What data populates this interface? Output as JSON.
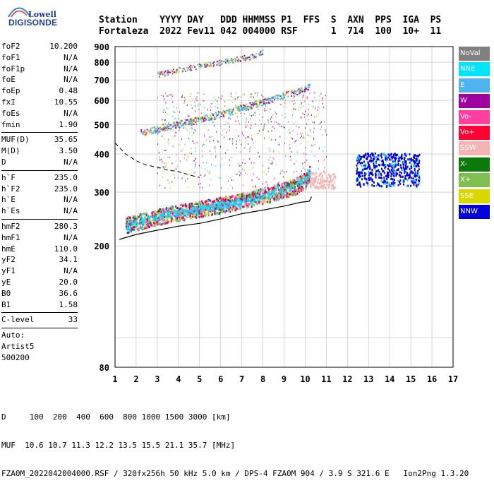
{
  "logo": {
    "line1": "Lowell",
    "line2": "DIGISONDE"
  },
  "header": {
    "labels": [
      "Station",
      "YYYY DAY",
      "DDD HHMMSS",
      "P1",
      "FFS",
      "S",
      "AXN",
      "PPS",
      "IGA",
      "PS"
    ],
    "line1": "Station    YYYY DAY   DDD HHMMSS P1  FFS  S  AXN  PPS  IGA  PS",
    "line2": "Fortaleza  2022 Fev11 042 004000 RSF      1  714  100  10+  11"
  },
  "params": [
    {
      "name": "foF2",
      "value": "10.200"
    },
    {
      "name": "foF1",
      "value": "N/A"
    },
    {
      "name": "foF1p",
      "value": "N/A"
    },
    {
      "name": "foE",
      "value": "N/A"
    },
    {
      "name": "foEp",
      "value": "0.48"
    },
    {
      "name": "fxI",
      "value": "10.55"
    },
    {
      "name": "foEs",
      "value": "N/A"
    },
    {
      "name": "fmin",
      "value": "1.90"
    },
    {
      "sep": true
    },
    {
      "name": "MUF(D)",
      "value": "35.65"
    },
    {
      "name": "M(D)",
      "value": "3.50"
    },
    {
      "name": "D",
      "value": "N/A"
    },
    {
      "sep": true
    },
    {
      "name": "h`F",
      "value": "235.0"
    },
    {
      "name": "h`F2",
      "value": "235.0"
    },
    {
      "name": "h`E",
      "value": "N/A"
    },
    {
      "name": "h`Es",
      "value": "N/A"
    },
    {
      "sep": true
    },
    {
      "name": "hmF2",
      "value": "280.3"
    },
    {
      "name": "hmF1",
      "value": "N/A"
    },
    {
      "name": "hmE",
      "value": "110.0"
    },
    {
      "name": "yF2",
      "value": "34.1"
    },
    {
      "name": "yF1",
      "value": "N/A"
    },
    {
      "name": "yE",
      "value": "20.0"
    },
    {
      "name": "B0",
      "value": "36.6"
    },
    {
      "name": "B1",
      "value": "1.58"
    },
    {
      "sep": true
    },
    {
      "name": "C-level",
      "value": "33"
    },
    {
      "sep": true
    },
    {
      "text": "Auto:"
    },
    {
      "text": "Artist5"
    },
    {
      "text": "500200"
    }
  ],
  "legend": [
    {
      "label": "NoVal",
      "color": "#808080"
    },
    {
      "label": "NNE",
      "color": "#00e5ff"
    },
    {
      "label": "E",
      "color": "#4fb3f0"
    },
    {
      "label": "W",
      "color": "#a000a0"
    },
    {
      "label": "Vo-",
      "color": "#ff3fa0"
    },
    {
      "label": "Vo+",
      "color": "#ff0033"
    },
    {
      "label": "SSW",
      "color": "#f4b4b4"
    },
    {
      "label": "X-",
      "color": "#0a7a0a"
    },
    {
      "label": "X+",
      "color": "#7fbf4f"
    },
    {
      "label": "SSE",
      "color": "#d8d800"
    },
    {
      "label": "NNW",
      "color": "#0000d8"
    }
  ],
  "footer": {
    "row1": "D     100  200  400  600  800 1000 1500 3000 [km]",
    "row2": "MUF  10.6 10.7 11.3 12.2 13.5 15.5 21.1 35.7 [MHz]",
    "row3": "FZA0M_2022042004000.RSF / 320fx256h 50 kHz 5.0 km / DPS-4 FZA0M 904 / 3.9 S 321.6 E   Ion2Png 1.3.20"
  },
  "chart_data": {
    "type": "scatter",
    "xlim": [
      1,
      17
    ],
    "ylim": [
      80,
      900
    ],
    "xticks": [
      1,
      2,
      3,
      4,
      5,
      6,
      7,
      8,
      9,
      10,
      11,
      12,
      13,
      14,
      15,
      16,
      17
    ],
    "yticks": [
      80,
      200,
      300,
      400,
      500,
      600,
      700,
      800,
      900
    ],
    "yscale": "log",
    "grid": true,
    "legend_position": "right",
    "traces": [
      {
        "name": "F2 trace",
        "series": "Vo+",
        "points": [
          [
            1.5,
            235
          ],
          [
            2.5,
            245
          ],
          [
            3.5,
            255
          ],
          [
            4.5,
            262
          ],
          [
            5.5,
            270
          ],
          [
            6.5,
            278
          ],
          [
            7.5,
            288
          ],
          [
            8.5,
            300
          ],
          [
            9.5,
            315
          ],
          [
            10.0,
            330
          ],
          [
            10.2,
            350
          ]
        ]
      },
      {
        "name": "2nd hop",
        "series": "E",
        "points": [
          [
            2.2,
            470
          ],
          [
            3.5,
            495
          ],
          [
            5.0,
            520
          ],
          [
            6.5,
            555
          ],
          [
            8.0,
            595
          ],
          [
            9.5,
            640
          ],
          [
            10.2,
            670
          ]
        ]
      },
      {
        "name": "3rd hop",
        "series": "E",
        "points": [
          [
            3.0,
            730
          ],
          [
            4.5,
            770
          ],
          [
            6.0,
            800
          ],
          [
            7.5,
            840
          ],
          [
            8.0,
            870
          ]
        ]
      },
      {
        "name": "NNW cluster",
        "series": "NNW",
        "points": [
          [
            12.5,
            340
          ],
          [
            13.0,
            360
          ],
          [
            13.5,
            355
          ],
          [
            14.0,
            370
          ],
          [
            14.5,
            350
          ],
          [
            15.0,
            365
          ],
          [
            12.8,
            320
          ],
          [
            14.2,
            390
          ]
        ]
      }
    ],
    "profile_solid": [
      [
        1.2,
        210
      ],
      [
        2.0,
        218
      ],
      [
        3.0,
        225
      ],
      [
        4.0,
        232
      ],
      [
        5.0,
        237
      ],
      [
        6.0,
        245
      ],
      [
        7.0,
        255
      ],
      [
        8.0,
        262
      ],
      [
        9.0,
        270
      ],
      [
        9.8,
        278
      ],
      [
        10.2,
        280
      ],
      [
        10.3,
        290
      ]
    ],
    "profile_dashed": [
      [
        1.0,
        435
      ],
      [
        1.5,
        400
      ],
      [
        2.0,
        380
      ],
      [
        2.5,
        368
      ],
      [
        3.0,
        362
      ],
      [
        3.5,
        355
      ],
      [
        4.0,
        350
      ],
      [
        4.5,
        342
      ],
      [
        5.0,
        335
      ]
    ]
  }
}
